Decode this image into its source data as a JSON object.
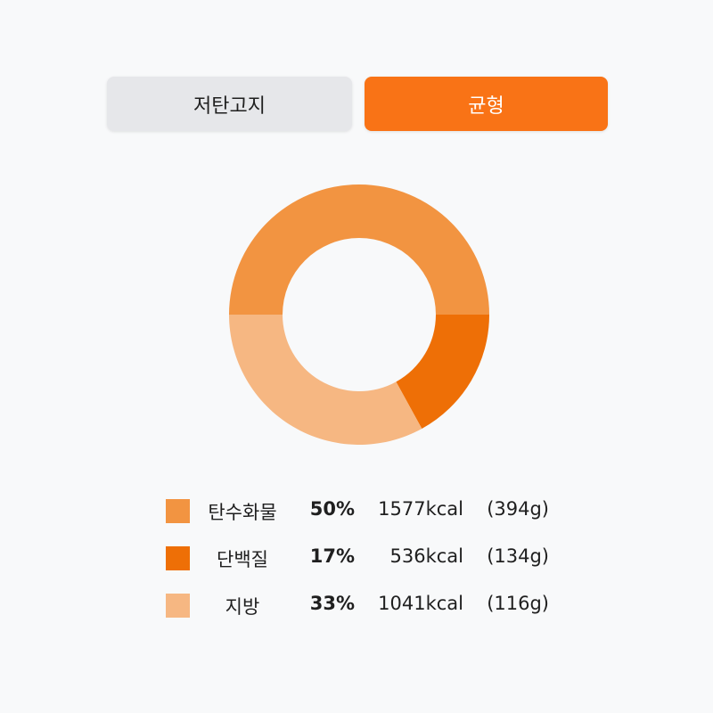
{
  "tabs": [
    {
      "label": "저탄고지",
      "active": false
    },
    {
      "label": "균형",
      "active": true
    }
  ],
  "colors": {
    "accent": "#f97316",
    "tab_inactive_bg": "#e6e7ea",
    "page_bg": "#f8f9fa"
  },
  "chart_data": {
    "type": "pie",
    "variant": "donut",
    "title": "",
    "slices": [
      {
        "label": "탄수화물",
        "percent": 50,
        "percent_text": "50%",
        "kcal_text": "1577kcal",
        "grams_text": "(394g)",
        "kcal": 1577,
        "grams": 394,
        "color": "#f29441"
      },
      {
        "label": "단백질",
        "percent": 17,
        "percent_text": "17%",
        "kcal_text": "536kcal",
        "grams_text": "(134g)",
        "kcal": 536,
        "grams": 134,
        "color": "#ee6f06"
      },
      {
        "label": "지방",
        "percent": 33,
        "percent_text": "33%",
        "kcal_text": "1041kcal",
        "grams_text": "(116g)",
        "kcal": 1041,
        "grams": 116,
        "color": "#f6b782"
      }
    ],
    "legend_position": "bottom"
  }
}
